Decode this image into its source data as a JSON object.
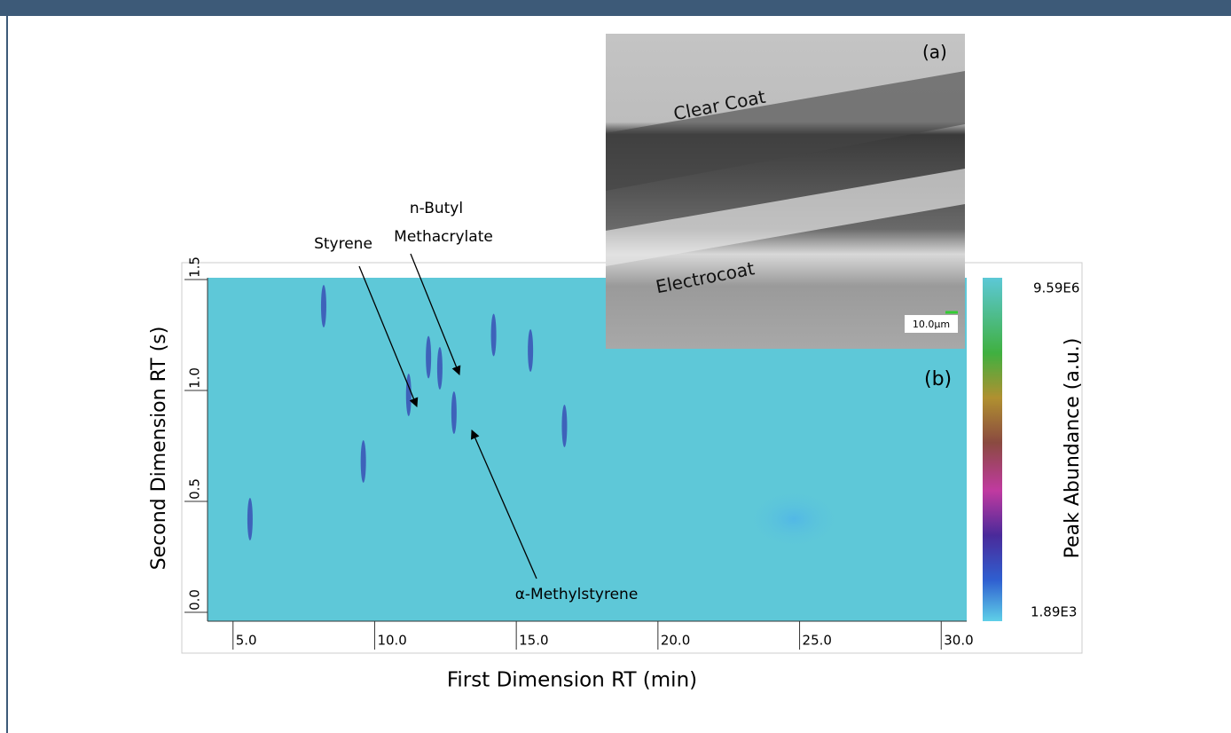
{
  "chart_data": {
    "type": "contour",
    "title_x": "First Dimension RT (min)",
    "title_y": "Second Dimension RT (s)",
    "colorbar_title": "Peak Abundance (a.u.)",
    "xlim": [
      4.1,
      30.9
    ],
    "ylim": [
      -0.04,
      1.508
    ],
    "xticks": [
      {
        "value": 5,
        "label": "5.0"
      },
      {
        "value": 10,
        "label": "10.0"
      },
      {
        "value": 15,
        "label": "15.0"
      },
      {
        "value": 20,
        "label": "20.0"
      },
      {
        "value": 25,
        "label": "25.0"
      },
      {
        "value": 30,
        "label": "30.0"
      }
    ],
    "yticks": [
      {
        "value": 0,
        "label": "0.0"
      },
      0.5,
      {
        "value": 1,
        "label": "1.0"
      },
      1.5
    ],
    "clim": [
      1890,
      9590000
    ],
    "cticks": [
      {
        "value": 1890,
        "label": "1.89E3"
      },
      {
        "value": 9590000,
        "label": "9.59E6"
      }
    ],
    "x": [
      5.6,
      8.2,
      11.2,
      11.9,
      12.3,
      14.2,
      15.5,
      16.7,
      9.6,
      12.8
    ],
    "values": [
      0.42,
      1.38,
      0.98,
      1.15,
      1.1,
      1.25,
      1.18,
      0.84,
      0.68,
      0.9
    ],
    "color": "#3440b0",
    "annotations": [
      {
        "lines": [
          "Styrene"
        ]
      },
      {
        "lines": [
          "n-Butyl",
          "Methacrylate"
        ]
      },
      {
        "lines": [
          "α-Methylstyrene"
        ]
      }
    ],
    "panel_label": "(b)",
    "inset": {
      "label": "(a)",
      "layers": [
        "Clear Coat",
        "Electrocoat"
      ],
      "scale_bar": "10.0µm"
    }
  }
}
